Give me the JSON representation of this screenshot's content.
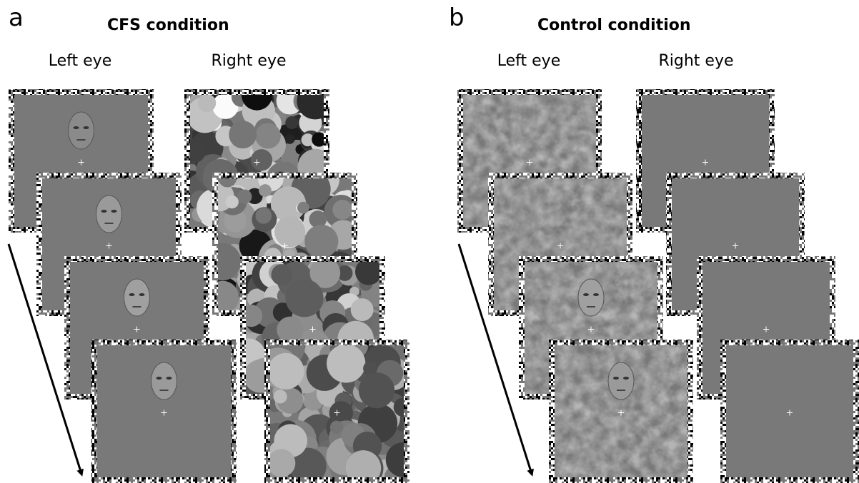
{
  "panels": [
    {
      "label": "a",
      "title": "CFS condition",
      "left_eye": "Left eye",
      "right_eye": "Right eye"
    },
    {
      "label": "b",
      "title": "Control condition",
      "left_eye": "Left eye",
      "right_eye": "Right eye"
    }
  ]
}
